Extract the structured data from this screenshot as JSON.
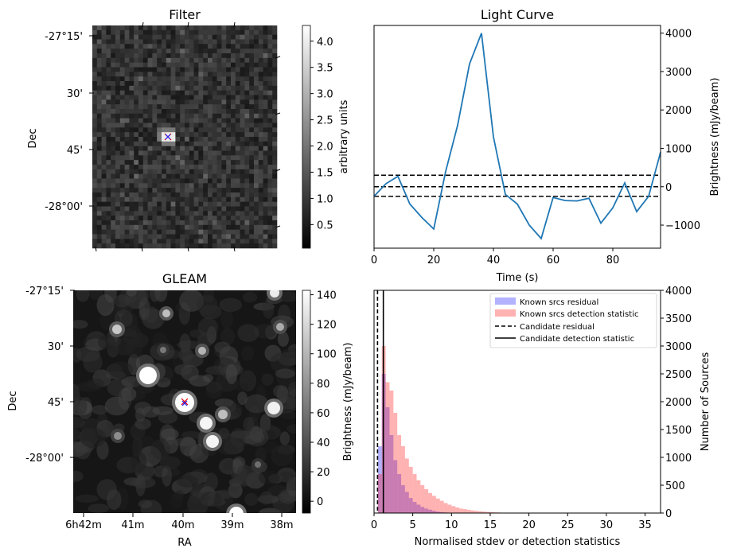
{
  "filter": {
    "title": "Filter",
    "ylabel": "Dec",
    "yticks": [
      "-27°15'",
      "30'",
      "45'",
      "-28°00'"
    ],
    "colorbar": {
      "label": "arbitrary units",
      "range": [
        0.05,
        4.3
      ],
      "ticks": [
        "0.5",
        "1.0",
        "1.5",
        "2.0",
        "2.5",
        "3.0",
        "3.5",
        "4.0"
      ]
    }
  },
  "gleam": {
    "title": "GLEAM",
    "ylabel": "Dec",
    "xlabel": "RA",
    "yticks": [
      "-27°15'",
      "30'",
      "45'",
      "-28°00'"
    ],
    "xticks": [
      "6h42m",
      "41m",
      "40m",
      "39m",
      "38m"
    ],
    "colorbar": {
      "label": "Brightness (mJy/beam)",
      "range": [
        -8,
        143
      ],
      "ticks": [
        "0",
        "20",
        "40",
        "60",
        "80",
        "100",
        "120",
        "140"
      ]
    }
  },
  "chart_data": [
    {
      "type": "line",
      "title": "Light Curve",
      "xlabel": "Time (s)",
      "ylabel": "Brightness (mJy/beam)",
      "xlim": [
        0,
        96
      ],
      "ylim": [
        -1600,
        4200
      ],
      "xticks": [
        0,
        20,
        40,
        60,
        80
      ],
      "yticks": [
        -1000,
        0,
        1000,
        2000,
        3000,
        4000
      ],
      "line_color": "#1f77b4",
      "series": [
        {
          "x": [
            0,
            4,
            8,
            12,
            16,
            20,
            24,
            28,
            32,
            36,
            40,
            44,
            48,
            52,
            56,
            60,
            64,
            68,
            72,
            76,
            80,
            84,
            88,
            92,
            96
          ],
          "values": [
            -250,
            80,
            270,
            -450,
            -800,
            -1100,
            400,
            1600,
            3200,
            4000,
            1300,
            -200,
            -450,
            -1000,
            -1350,
            -280,
            -360,
            -370,
            -300,
            -950,
            -550,
            100,
            -650,
            -250,
            900
          ]
        }
      ],
      "hlines": [
        300,
        0,
        -250
      ],
      "hline_style": "dashed"
    },
    {
      "type": "histogram",
      "xlabel": "Normalised stdev or detection statistics",
      "ylabel": "Number of Sources",
      "xlim": [
        0,
        37
      ],
      "ylim": [
        0,
        4000
      ],
      "xticks": [
        0,
        5,
        10,
        15,
        20,
        25,
        30,
        35
      ],
      "yticks": [
        0,
        500,
        1000,
        1500,
        2000,
        2500,
        3000,
        3500,
        4000
      ],
      "bin_width": 0.5,
      "legend_position": "top-right",
      "series": [
        {
          "name": "Known srcs residual",
          "color": "#0000ff",
          "values": [
            0,
            1200,
            2500,
            1900,
            1400,
            950,
            700,
            500,
            380,
            270,
            200,
            150,
            110,
            80,
            60,
            40,
            25,
            15,
            10,
            6,
            4,
            2,
            1
          ]
        },
        {
          "name": "Known srcs detection statistic",
          "color": "#ff0000",
          "values": [
            0,
            700,
            3000,
            2350,
            2200,
            1800,
            1400,
            1200,
            980,
            830,
            700,
            590,
            500,
            430,
            360,
            310,
            260,
            220,
            180,
            150,
            125,
            100,
            80,
            70,
            58,
            48,
            40,
            32,
            26,
            20,
            16,
            12,
            9,
            7,
            5,
            4,
            3,
            2,
            2,
            1,
            1,
            1,
            1,
            1,
            1,
            1
          ]
        }
      ],
      "vlines": [
        {
          "name": "Candidate residual",
          "x": 0.45,
          "style": "dashed"
        },
        {
          "name": "Candidate detection statistic",
          "x": 1.2,
          "style": "solid"
        }
      ]
    }
  ]
}
